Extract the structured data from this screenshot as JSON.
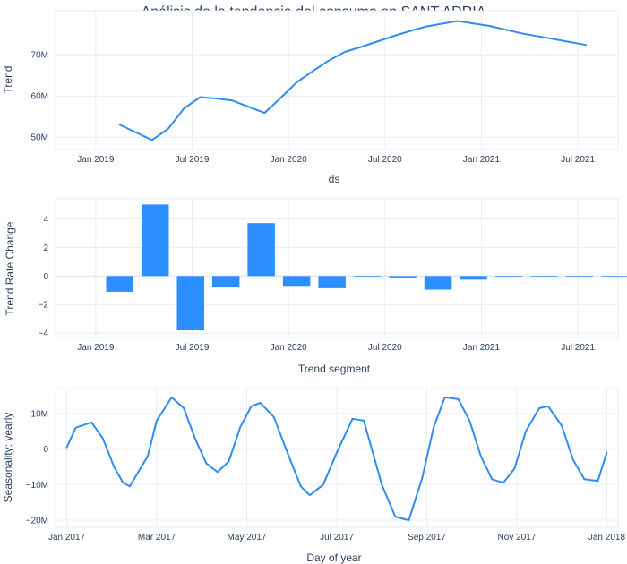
{
  "title": "Análisis de la tendencia del consumo en SANT ADRIA",
  "colors": {
    "line": "#2f8cf0",
    "bar": "#2b8fff",
    "text": "#2a3f5f"
  },
  "chart_data": [
    {
      "type": "line",
      "name": "trend",
      "xlabel": "ds",
      "ylabel": "Trend",
      "x_ticks": [
        "Jan 2019",
        "Jul 2019",
        "Jan 2020",
        "Jul 2020",
        "Jan 2021",
        "Jul 2021"
      ],
      "y_ticks": [
        "50M",
        "60M",
        "70M"
      ],
      "xlim": [
        -2.5,
        32.5
      ],
      "ylim": [
        47,
        80.7
      ],
      "y_tick_values": [
        50,
        60,
        70
      ],
      "x": [
        1.5,
        3.5,
        4.5,
        5.5,
        6.5,
        7.5,
        8.5,
        10.5,
        11.5,
        12.5,
        13.5,
        14.5,
        15.5,
        16.5,
        17.5,
        18.5,
        19.5,
        20.5,
        22.5,
        24.5,
        26.5,
        28.5,
        30.5
      ],
      "y": [
        53.0,
        49.3,
        52.0,
        57.0,
        59.7,
        59.4,
        58.9,
        55.9,
        59.5,
        63.3,
        66.0,
        68.6,
        70.7,
        71.9,
        73.2,
        74.5,
        75.7,
        76.8,
        78.2,
        77.0,
        75.2,
        73.8,
        72.4
      ]
    },
    {
      "type": "bar",
      "name": "trend-rate-change",
      "xlabel": "Trend segment",
      "ylabel": "Trend Rate Change",
      "x_ticks": [
        "Jan 2019",
        "Jul 2019",
        "Jan 2020",
        "Jul 2020",
        "Jan 2021",
        "Jul 2021"
      ],
      "y_ticks": [
        "4",
        "2",
        "0",
        "−2",
        "−4"
      ],
      "y_tick_values": [
        4,
        2,
        0,
        -2,
        -4
      ],
      "xlim": [
        -2.5,
        32.5
      ],
      "ylim": [
        -4.3,
        5.4
      ],
      "bar_width_months": 1.7,
      "x": [
        1.5,
        3.7,
        5.9,
        8.1,
        10.3,
        12.5,
        14.7,
        16.9,
        19.1,
        21.3,
        23.5,
        25.7,
        27.9,
        30.1,
        32.3
      ],
      "values": [
        -1.1,
        5.0,
        -3.8,
        -0.8,
        3.7,
        -0.75,
        -0.85,
        -0.05,
        -0.1,
        -0.95,
        -0.25,
        0.0,
        0.0,
        0.0,
        0.0
      ]
    },
    {
      "type": "line",
      "name": "seasonality-yearly",
      "xlabel": "Day of year",
      "ylabel": "Seasonality: yearly",
      "x_ticks": [
        "Jan 2017",
        "Mar 2017",
        "May 2017",
        "Jul 2017",
        "Sep 2017",
        "Nov 2017",
        "Jan 2018"
      ],
      "y_ticks": [
        "10M",
        "0",
        "−10M",
        "−20M"
      ],
      "y_tick_values": [
        10,
        0,
        -10,
        -20
      ],
      "xlim": [
        -0.25,
        12.25
      ],
      "ylim": [
        -22,
        17
      ],
      "x": [
        0.0,
        0.2,
        0.55,
        0.8,
        1.05,
        1.25,
        1.4,
        1.8,
        2.0,
        2.33,
        2.6,
        2.85,
        3.1,
        3.35,
        3.6,
        3.85,
        4.1,
        4.3,
        4.6,
        4.95,
        5.2,
        5.4,
        5.7,
        6.0,
        6.35,
        6.6,
        6.8,
        7.0,
        7.3,
        7.6,
        7.9,
        8.15,
        8.4,
        8.7,
        8.95,
        9.2,
        9.45,
        9.7,
        9.95,
        10.2,
        10.5,
        10.7,
        11.0,
        11.25,
        11.5,
        11.8,
        12.0
      ],
      "y": [
        0.5,
        6.0,
        7.5,
        3.0,
        -5.0,
        -9.5,
        -10.5,
        -2.0,
        8.0,
        14.5,
        11.5,
        3.0,
        -4.0,
        -6.5,
        -3.5,
        6.0,
        12.0,
        13.0,
        9.0,
        -2.5,
        -10.5,
        -13.0,
        -10.0,
        -1.0,
        8.5,
        8.0,
        -1.0,
        -10.0,
        -19.0,
        -20.0,
        -8.0,
        6.0,
        14.5,
        14.0,
        8.0,
        -2.0,
        -8.5,
        -9.5,
        -5.5,
        5.0,
        11.5,
        12.0,
        6.5,
        -3.0,
        -8.5,
        -9.0,
        -1.0
      ]
    }
  ]
}
